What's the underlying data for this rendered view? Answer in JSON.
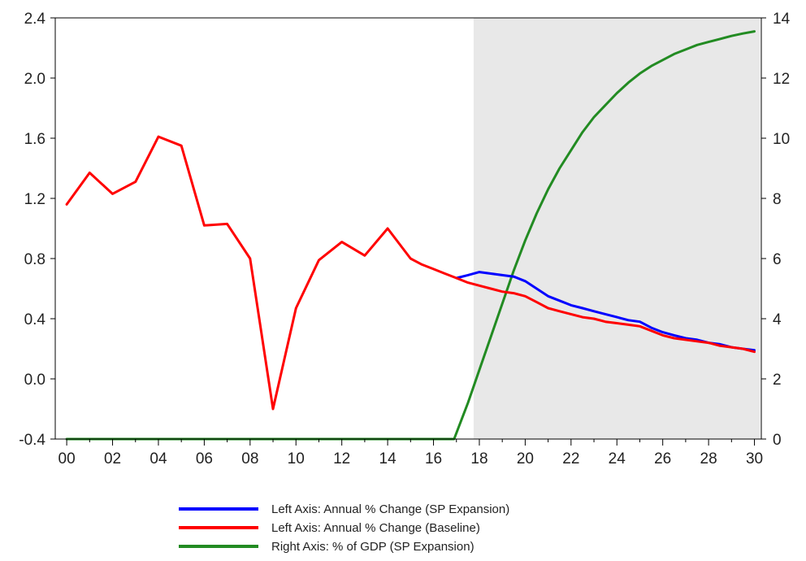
{
  "chart_data": {
    "type": "line",
    "title": "",
    "xlabel": "",
    "ylabel": "",
    "y2label": "",
    "x_range": [
      2000,
      2030
    ],
    "x_ticks": [
      "00",
      "02",
      "04",
      "06",
      "08",
      "10",
      "12",
      "14",
      "16",
      "18",
      "20",
      "22",
      "24",
      "26",
      "28",
      "30"
    ],
    "ylim": [
      -0.4,
      2.4
    ],
    "y_ticks": [
      "-0.4",
      "0.0",
      "0.4",
      "0.8",
      "1.2",
      "1.6",
      "2.0",
      "2.4"
    ],
    "y2lim": [
      0,
      14
    ],
    "y2_ticks": [
      "0",
      "2",
      "4",
      "6",
      "8",
      "10",
      "12",
      "14"
    ],
    "grid": false,
    "shaded_region": {
      "x_start": 2017.75,
      "x_end": 2030.25,
      "color": "#e8e8e8"
    },
    "legend_position": "bottom-center",
    "series": [
      {
        "name": "Left Axis: Annual % Change (SP Expansion)",
        "axis": "left",
        "color": "#0000ff",
        "x": [
          2017.0,
          2017.5,
          2018.0,
          2018.5,
          2019.0,
          2019.5,
          2020.0,
          2020.5,
          2021.0,
          2021.5,
          2022.0,
          2022.5,
          2023.0,
          2023.5,
          2024.0,
          2024.5,
          2025.0,
          2025.5,
          2026.0,
          2026.5,
          2027.0,
          2027.5,
          2028.0,
          2028.5,
          2029.0,
          2029.5,
          2030.0
        ],
        "y": [
          0.67,
          0.69,
          0.71,
          0.7,
          0.69,
          0.68,
          0.65,
          0.6,
          0.55,
          0.52,
          0.49,
          0.47,
          0.45,
          0.43,
          0.41,
          0.39,
          0.38,
          0.34,
          0.31,
          0.29,
          0.27,
          0.26,
          0.24,
          0.23,
          0.21,
          0.2,
          0.19
        ]
      },
      {
        "name": "Left Axis: Annual % Change (Baseline)",
        "axis": "left",
        "color": "#ff0000",
        "x": [
          2000,
          2001,
          2002,
          2003,
          2004,
          2005,
          2006,
          2007,
          2008,
          2009,
          2010,
          2011,
          2012,
          2013,
          2014,
          2015,
          2015.5,
          2016,
          2016.5,
          2017,
          2017.5,
          2018,
          2018.5,
          2019,
          2019.5,
          2020,
          2020.5,
          2021,
          2021.5,
          2022,
          2022.5,
          2023,
          2023.5,
          2024,
          2024.5,
          2025,
          2025.5,
          2026,
          2026.5,
          2027,
          2027.5,
          2028,
          2028.5,
          2029,
          2029.5,
          2030
        ],
        "y": [
          1.16,
          1.37,
          1.23,
          1.31,
          1.61,
          1.55,
          1.02,
          1.03,
          0.8,
          -0.2,
          0.47,
          0.79,
          0.91,
          0.82,
          1.0,
          0.8,
          0.76,
          0.73,
          0.7,
          0.67,
          0.64,
          0.62,
          0.6,
          0.58,
          0.57,
          0.55,
          0.51,
          0.47,
          0.45,
          0.43,
          0.41,
          0.4,
          0.38,
          0.37,
          0.36,
          0.35,
          0.32,
          0.29,
          0.27,
          0.26,
          0.25,
          0.24,
          0.22,
          0.21,
          0.2,
          0.18
        ]
      },
      {
        "name": "Right Axis: % of GDP (SP Expansion)",
        "axis": "right",
        "color": "#228b22",
        "x": [
          2000,
          2016.9,
          2017.5,
          2018.0,
          2018.5,
          2019.0,
          2019.5,
          2020.0,
          2020.5,
          2021.0,
          2021.5,
          2022.0,
          2022.5,
          2023.0,
          2023.5,
          2024.0,
          2024.5,
          2025.0,
          2025.5,
          2026.0,
          2026.5,
          2027.0,
          2027.5,
          2028.0,
          2028.5,
          2029.0,
          2029.5,
          2030.0
        ],
        "y": [
          0,
          0,
          1.2,
          2.3,
          3.4,
          4.5,
          5.6,
          6.6,
          7.5,
          8.3,
          9.0,
          9.6,
          10.2,
          10.7,
          11.1,
          11.5,
          11.85,
          12.15,
          12.4,
          12.6,
          12.8,
          12.95,
          13.1,
          13.2,
          13.3,
          13.4,
          13.48,
          13.55
        ]
      }
    ]
  }
}
